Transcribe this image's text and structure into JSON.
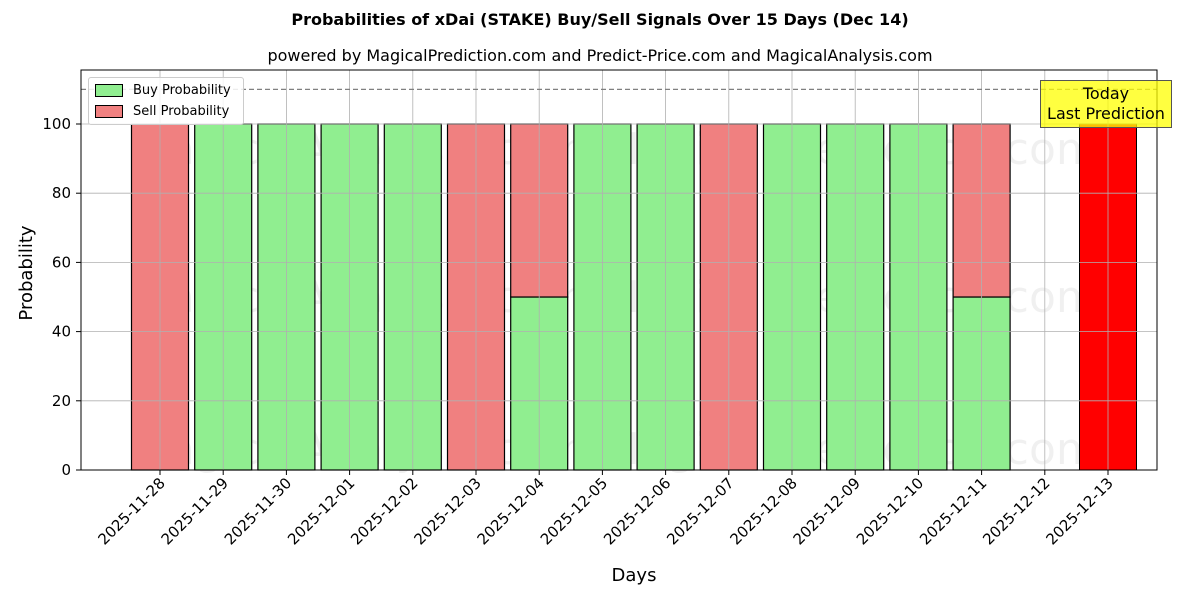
{
  "chart_data": {
    "type": "bar",
    "stacked": true,
    "title": "Probabilities of xDai (STAKE) Buy/Sell Signals Over 15 Days (Dec 14)",
    "subtitle": "powered by MagicalPrediction.com and Predict-Price.com and MagicalAnalysis.com",
    "xlabel": "Days",
    "ylabel": "Probability",
    "ylim": [
      0,
      115
    ],
    "yticks": [
      0,
      20,
      40,
      60,
      80,
      100
    ],
    "reference_line": {
      "y": 110,
      "style": "dashed",
      "color": "#808080"
    },
    "grid": true,
    "legend_position": "upper left",
    "categories": [
      "2025-11-28",
      "2025-11-29",
      "2025-11-30",
      "2025-12-01",
      "2025-12-02",
      "2025-12-03",
      "2025-12-04",
      "2025-12-05",
      "2025-12-06",
      "2025-12-07",
      "2025-12-08",
      "2025-12-09",
      "2025-12-10",
      "2025-12-11",
      "2025-12-12",
      "2025-12-13"
    ],
    "series": [
      {
        "name": "Buy Probability",
        "color": "#90EE90",
        "values": [
          0,
          100,
          100,
          100,
          100,
          0,
          50,
          100,
          100,
          0,
          100,
          100,
          100,
          50,
          0,
          0
        ]
      },
      {
        "name": "Sell Probability",
        "color": "#F08080",
        "values": [
          100,
          0,
          0,
          0,
          0,
          100,
          50,
          0,
          0,
          100,
          0,
          0,
          0,
          50,
          0,
          0
        ]
      }
    ],
    "highlight": {
      "category": "2025-12-13",
      "value": 100,
      "color": "#FF0000",
      "label": "Today\nLast Prediction"
    },
    "watermarks": [
      "MagicalAnalysis.com",
      "MagicalPrediction.com"
    ]
  },
  "header": {
    "title": "Probabilities of xDai (STAKE) Buy/Sell Signals Over 15 Days (Dec 14)",
    "subtitle": "powered by MagicalPrediction.com and Predict-Price.com and MagicalAnalysis.com"
  },
  "legend": {
    "buy_label": "Buy Probability",
    "sell_label": "Sell Probability"
  },
  "annotation": {
    "line1": "Today",
    "line2": "Last Prediction"
  },
  "axes": {
    "xlabel": "Days",
    "ylabel": "Probability"
  }
}
